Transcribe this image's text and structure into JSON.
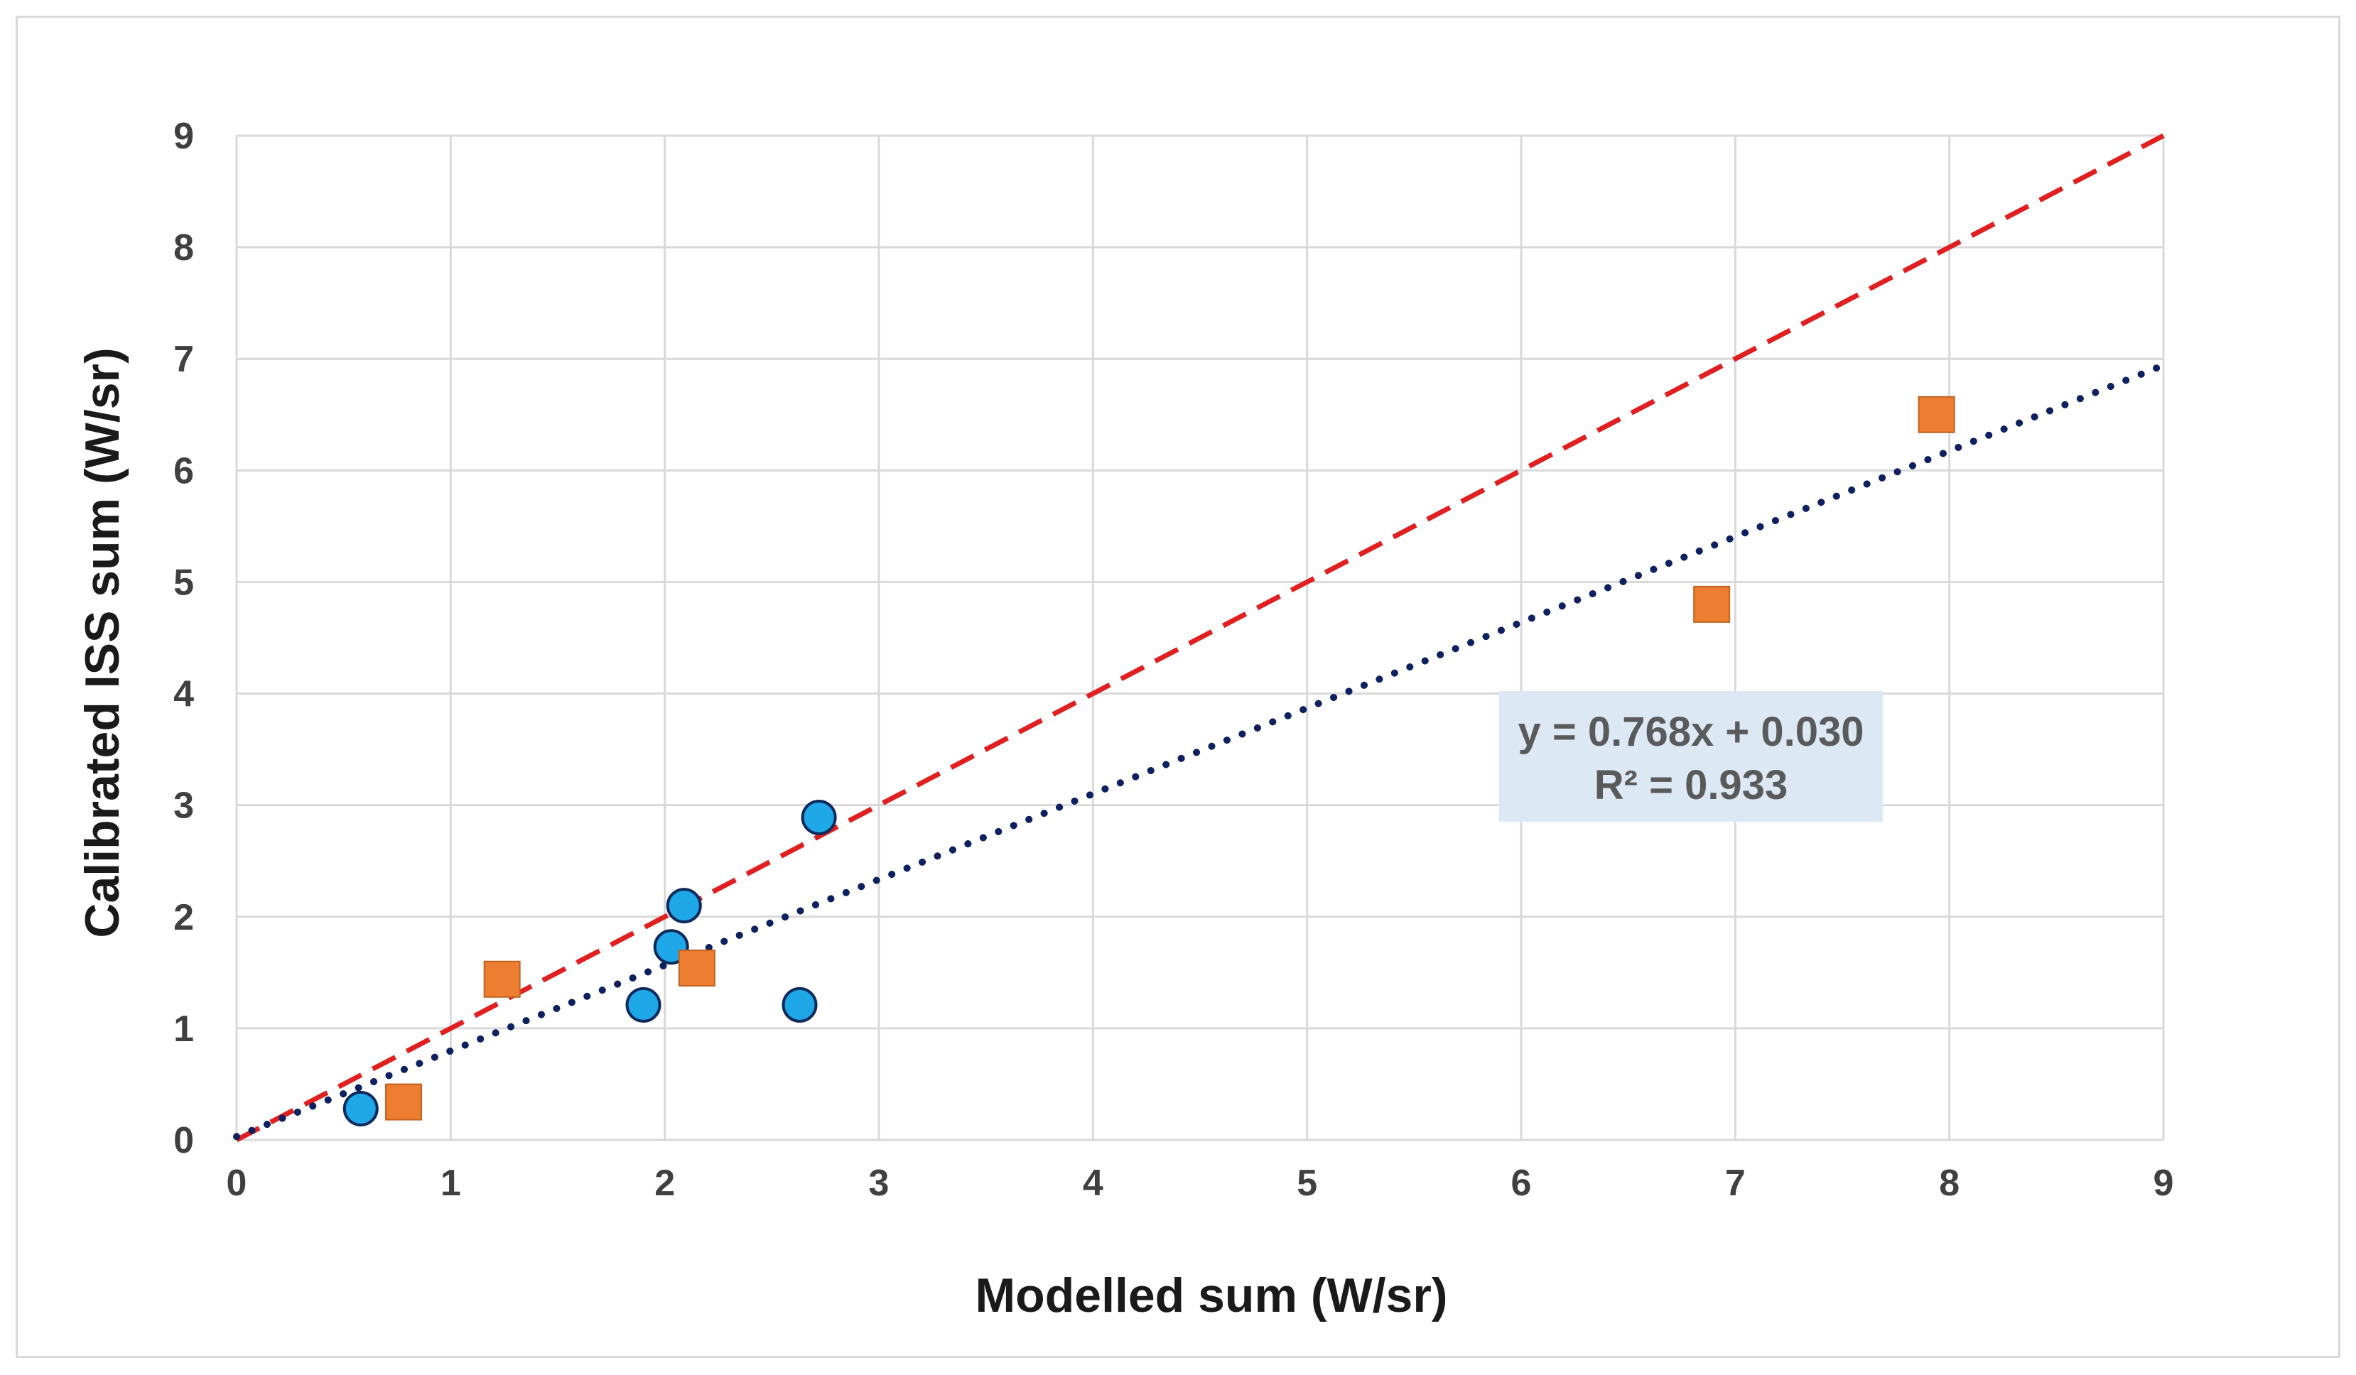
{
  "chart_data": {
    "type": "scatter",
    "title": "",
    "xlabel": "Modelled sum (W/sr)",
    "ylabel": "Calibrated ISS sum (W/sr)",
    "xlim": [
      0,
      9
    ],
    "ylim": [
      0,
      9
    ],
    "x_ticks": [
      "0",
      "1",
      "2",
      "3",
      "4",
      "5",
      "6",
      "7",
      "8",
      "9"
    ],
    "y_ticks": [
      "0",
      "1",
      "2",
      "3",
      "4",
      "5",
      "6",
      "7",
      "8",
      "9"
    ],
    "grid": true,
    "series": [
      {
        "name": "circles",
        "marker": "circle",
        "color": "#1fa8e8",
        "edge_color": "#0d2a5c",
        "points": [
          {
            "x": 0.58,
            "y": 0.28
          },
          {
            "x": 1.9,
            "y": 1.21
          },
          {
            "x": 2.03,
            "y": 1.73
          },
          {
            "x": 2.09,
            "y": 2.1
          },
          {
            "x": 2.63,
            "y": 1.21
          },
          {
            "x": 2.72,
            "y": 2.89
          }
        ]
      },
      {
        "name": "squares",
        "marker": "square",
        "color": "#ed7d31",
        "edge_color": "#c0631f",
        "points": [
          {
            "x": 0.78,
            "y": 0.34
          },
          {
            "x": 1.24,
            "y": 1.44
          },
          {
            "x": 2.15,
            "y": 1.54
          },
          {
            "x": 6.89,
            "y": 4.8
          },
          {
            "x": 7.94,
            "y": 6.5
          }
        ]
      }
    ],
    "lines": [
      {
        "name": "1:1 line",
        "style": "dashed",
        "color": "#e02020",
        "slope": 1.0,
        "intercept": 0.0
      },
      {
        "name": "linear fit",
        "style": "dotted",
        "color": "#0d2060",
        "slope": 0.768,
        "intercept": 0.03
      }
    ],
    "annotation": {
      "line1": "y = 0.768x + 0.030",
      "line2": "R² = 0.933",
      "background": "#dce9f5"
    }
  }
}
